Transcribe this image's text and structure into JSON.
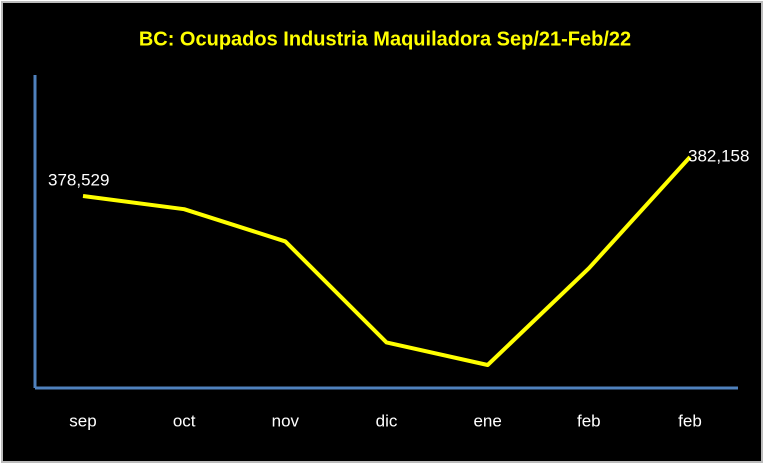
{
  "chart_data": {
    "type": "line",
    "title": "BC: Ocupados Industria Maquiladora Sep/21-Feb/22",
    "categories": [
      "sep",
      "oct",
      "nov",
      "dic",
      "ene",
      "feb",
      "feb"
    ],
    "series": [
      {
        "color": "#ffff00",
        "values": [
          378529,
          377300,
          374300,
          364900,
          362800,
          371800,
          382158
        ],
        "value_labels": [
          "378,529",
          null,
          null,
          null,
          null,
          null,
          "382,158"
        ]
      }
    ],
    "axis_color": "#4f81bd"
  }
}
